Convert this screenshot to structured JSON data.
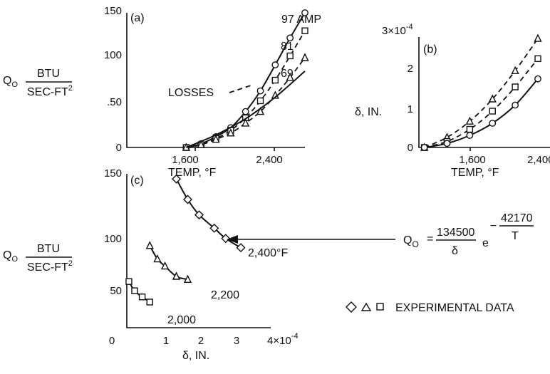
{
  "chart_data": [
    {
      "type": "line",
      "panel_label": "(a)",
      "xlabel": "TEMP, °F",
      "x_ticks": [
        "1,600",
        "2,400"
      ],
      "y_ticks": [
        "0",
        ".50",
        "100",
        "150"
      ],
      "ylim": [
        0,
        150
      ],
      "xlim": [
        1200,
        2400
      ],
      "y_label_main": "Q",
      "y_label_sub": "O",
      "y_unit_num": "BTU",
      "y_unit_den": "SEC-FT",
      "y_unit_den_sup": "2",
      "annotation": "LOSSES",
      "series": [
        {
          "name": "97 AMP",
          "marker": "circle",
          "line": "solid",
          "x": [
            1600,
            1700,
            1800,
            1900,
            2000,
            2100,
            2200,
            2300,
            2400
          ],
          "y": [
            0,
            4,
            12,
            22,
            40,
            63,
            92,
            122,
            150
          ]
        },
        {
          "name": "81",
          "marker": "square",
          "line": "dashed",
          "x": [
            1600,
            1700,
            1800,
            1900,
            2000,
            2100,
            2200,
            2300,
            2400
          ],
          "y": [
            0,
            3,
            10,
            19,
            33,
            52,
            75,
            102,
            130
          ]
        },
        {
          "name": "69",
          "marker": "triangle",
          "line": "dashed",
          "x": [
            1600,
            1700,
            1800,
            1900,
            2000,
            2100,
            2200,
            2300,
            2400
          ],
          "y": [
            0,
            3,
            9,
            16,
            27,
            40,
            58,
            78,
            100
          ]
        },
        {
          "name": "LOSSES",
          "marker": "none",
          "line": "solid",
          "x": [
            1600,
            1800,
            2000,
            2200,
            2400
          ],
          "y": [
            0,
            14,
            32,
            56,
            85
          ]
        }
      ]
    },
    {
      "type": "line",
      "panel_label": "(b)",
      "xlabel": "TEMP, °F",
      "x_ticks": [
        "1,600",
        "2,400"
      ],
      "y_ticks": [
        "0",
        "1",
        "2"
      ],
      "y_top_tick": "3×10",
      "y_top_tick_exp": "-4",
      "ylabel": "δ, IN.",
      "ylim": [
        0,
        3
      ],
      "xlim": [
        1200,
        2400
      ],
      "series": [
        {
          "name": "triangle",
          "marker": "triangle",
          "line": "dashed",
          "x": [
            1650,
            1800,
            1950,
            2100,
            2250,
            2400
          ],
          "y": [
            0,
            0.25,
            0.65,
            1.2,
            1.9,
            2.7
          ]
        },
        {
          "name": "square",
          "marker": "square",
          "line": "dashed",
          "x": [
            1650,
            1800,
            1950,
            2100,
            2250,
            2400
          ],
          "y": [
            0,
            0.15,
            0.45,
            0.9,
            1.5,
            2.2
          ]
        },
        {
          "name": "circle",
          "marker": "circle",
          "line": "solid",
          "x": [
            1650,
            1800,
            1950,
            2100,
            2250,
            2400
          ],
          "y": [
            0,
            0.1,
            0.3,
            0.6,
            1.05,
            1.7
          ]
        }
      ]
    },
    {
      "type": "line",
      "panel_label": "(c)",
      "xlabel": "δ, IN.",
      "x_ticks": [
        "0",
        "1",
        "2",
        "3",
        "4×10"
      ],
      "x_last_tick_exp": "-4",
      "y_ticks": [
        "50",
        "100",
        "150"
      ],
      "ylim": [
        0,
        150
      ],
      "xlim": [
        0,
        4
      ],
      "y_label_main": "Q",
      "y_label_sub": "O",
      "y_unit_num": "BTU",
      "y_unit_den": "SEC-FT",
      "y_unit_den_sup": "2",
      "series": [
        {
          "name": "2,400°F",
          "marker": "diamond",
          "line": "solid",
          "x": [
            1.7,
            2.0,
            2.3,
            2.7,
            3.0,
            3.4
          ],
          "y": [
            145,
            125,
            110,
            97,
            87,
            78
          ]
        },
        {
          "name": "2,200",
          "marker": "triangle",
          "line": "solid",
          "x": [
            1.0,
            1.2,
            1.4,
            1.7,
            2.0
          ],
          "y": [
            80,
            67,
            60,
            50,
            47
          ]
        },
        {
          "name": "2,000",
          "marker": "square",
          "line": "solid",
          "x": [
            0.45,
            0.6,
            0.8,
            1.0
          ],
          "y": [
            45,
            36,
            30,
            25
          ]
        }
      ]
    }
  ],
  "equation": {
    "lhs": "Q",
    "lhs_sub": "O",
    "eq": "=",
    "num": "134500",
    "den": "δ",
    "e": "e",
    "exp_sign": "−",
    "exp_num": "42170",
    "exp_den": "T"
  },
  "legend_label": "EXPERIMENTAL DATA",
  "colors": {
    "ink": "#111111",
    "background": "#ffffff"
  }
}
